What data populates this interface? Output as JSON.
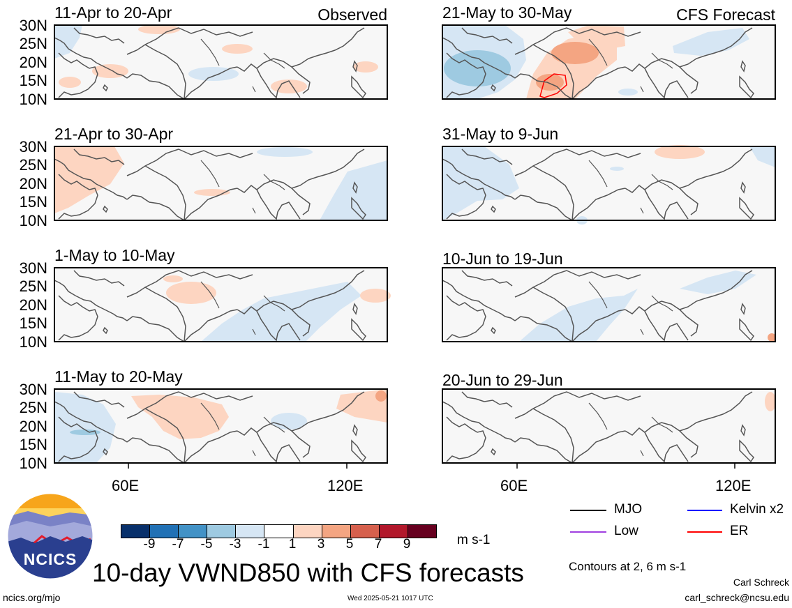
{
  "panels": [
    {
      "title": "11-Apr to 20-Apr",
      "tag": "Observed"
    },
    {
      "title": "21-Apr to 30-Apr",
      "tag": ""
    },
    {
      "title": "1-May to 10-May",
      "tag": ""
    },
    {
      "title": "11-May to 20-May",
      "tag": ""
    },
    {
      "title": "21-May to 30-May",
      "tag": "CFS Forecast"
    },
    {
      "title": "31-May to 9-Jun",
      "tag": ""
    },
    {
      "title": "10-Jun to 19-Jun",
      "tag": ""
    },
    {
      "title": "20-Jun to 29-Jun",
      "tag": ""
    }
  ],
  "lat_labels": [
    "30N",
    "25N",
    "20N",
    "15N",
    "10N"
  ],
  "lon_labels": [
    "60E",
    "120E"
  ],
  "colorbar": {
    "labels": [
      "-9",
      "-7",
      "-5",
      "-3",
      "-1",
      "1",
      "3",
      "5",
      "7",
      "9"
    ],
    "colors": [
      "#08306b",
      "#2171b5",
      "#4292c6",
      "#9ecae1",
      "#d6e6f4",
      "#ffffff",
      "#fdd5c1",
      "#f4a582",
      "#d6604d",
      "#b2182b",
      "#67001f"
    ],
    "units": "m s-1"
  },
  "legend": {
    "items": [
      {
        "label": "MJO",
        "color": "#000000"
      },
      {
        "label": "Kelvin x2",
        "color": "#0000ff"
      },
      {
        "label": "Low",
        "color": "#a040e0"
      },
      {
        "label": "ER",
        "color": "#ff0000"
      }
    ],
    "contours_note": "Contours at 2, 6 m s-1"
  },
  "main_title": "10-day VWND850 with CFS forecasts",
  "logo_text": "NCICS",
  "footer": {
    "url": "ncics.org/mjo",
    "timestamp": "Wed 2025-05-21 1017 UTC",
    "author": "Carl Schreck",
    "email": "carl_schreck@ncsu.edu"
  },
  "colors": {
    "neg_light": "#d6e6f4",
    "neg_mid": "#9ecae1",
    "pos_light": "#fdd5c1",
    "pos_mid": "#f4a582",
    "er_contour": "#ff0000"
  }
}
